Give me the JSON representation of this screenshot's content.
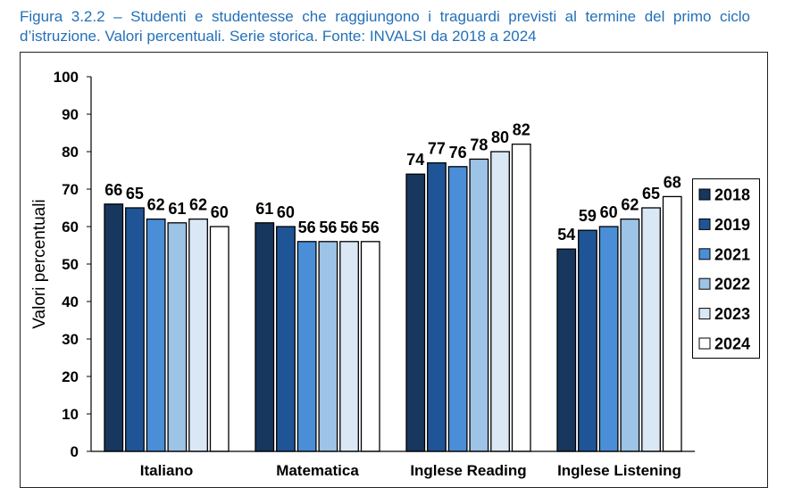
{
  "figure": {
    "caption_lines": [
      "Figura 3.2.2 – Studenti e studentesse che raggiungono i traguardi previsti al termine del primo ciclo",
      "d’istruzione. Valori percentuali. Serie storica. Fonte: INVALSI da 2018 a 2024"
    ],
    "caption_color": "#2470B8"
  },
  "chart_data": {
    "type": "bar",
    "categories": [
      "Italiano",
      "Matematica",
      "Inglese Reading",
      "Inglese Listening"
    ],
    "series": [
      {
        "name": "2018",
        "color": "#17375E",
        "values": [
          66,
          61,
          74,
          54
        ]
      },
      {
        "name": "2019",
        "color": "#1F5596",
        "values": [
          65,
          60,
          77,
          59
        ]
      },
      {
        "name": "2021",
        "color": "#4A8ED8",
        "values": [
          62,
          56,
          76,
          60
        ]
      },
      {
        "name": "2022",
        "color": "#9DC3E6",
        "values": [
          61,
          56,
          78,
          62
        ]
      },
      {
        "name": "2023",
        "color": "#DAE8F6",
        "values": [
          62,
          56,
          80,
          65
        ]
      },
      {
        "name": "2024",
        "color": "#FFFFFF",
        "values": [
          60,
          56,
          82,
          68
        ]
      }
    ],
    "ylabel": "Valori percentuali",
    "ylim": [
      0,
      100
    ],
    "yticks": [
      0,
      10,
      20,
      30,
      40,
      50,
      60,
      70,
      80,
      90,
      100
    ],
    "grid": false,
    "data_labels": true,
    "legend_position": "right"
  }
}
